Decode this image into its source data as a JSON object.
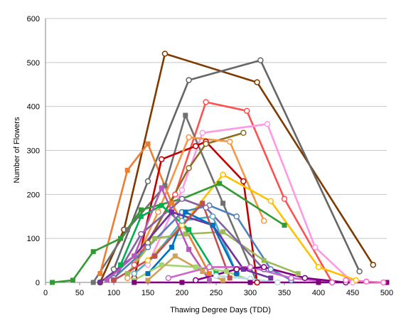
{
  "chart_data": {
    "type": "line",
    "title": "",
    "xlabel": "Thawing Degree Days (TDD)",
    "ylabel": "Number of Flowers",
    "xlim": [
      0,
      500
    ],
    "ylim": [
      0,
      600
    ],
    "xticks": [
      "0",
      "50",
      "100",
      "150",
      "200",
      "250",
      "300",
      "350",
      "400",
      "450",
      "500"
    ],
    "yticks": [
      "0",
      "100",
      "200",
      "300",
      "400",
      "500",
      "600"
    ],
    "grid": "horizontal",
    "legend": "none",
    "series": [
      {
        "color": "#7f3a00",
        "marker": "circle",
        "x": [
          80,
          115,
          175,
          310,
          480
        ],
        "y": [
          0,
          120,
          520,
          455,
          40
        ]
      },
      {
        "color": "#666666",
        "marker": "circle",
        "x": [
          100,
          150,
          210,
          315,
          460
        ],
        "y": [
          30,
          230,
          460,
          505,
          25
        ]
      },
      {
        "color": "#ff5050",
        "marker": "circle",
        "x": [
          130,
          190,
          235,
          295,
          350,
          420
        ],
        "y": [
          40,
          200,
          410,
          390,
          190,
          0
        ]
      },
      {
        "color": "#ff99e6",
        "marker": "circle",
        "x": [
          150,
          200,
          230,
          325,
          395,
          450
        ],
        "y": [
          40,
          210,
          340,
          360,
          80,
          0
        ]
      },
      {
        "color": "#707070",
        "marker": "square",
        "x": [
          70,
          120,
          175,
          205,
          260,
          310
        ],
        "y": [
          0,
          120,
          220,
          380,
          180,
          0
        ]
      },
      {
        "color": "#ed7d31",
        "marker": "square",
        "x": [
          80,
          120,
          150,
          185,
          240
        ],
        "y": [
          20,
          255,
          315,
          180,
          20
        ]
      },
      {
        "color": "#c00000",
        "marker": "circle",
        "x": [
          130,
          170,
          220,
          235,
          290,
          310
        ],
        "y": [
          10,
          280,
          310,
          320,
          230,
          0
        ]
      },
      {
        "color": "#8c6d1f",
        "marker": "circle",
        "x": [
          150,
          210,
          235,
          290
        ],
        "y": [
          90,
          260,
          315,
          340
        ]
      },
      {
        "color": "#f79646",
        "marker": "circle",
        "x": [
          120,
          165,
          210,
          270,
          320
        ],
        "y": [
          10,
          160,
          330,
          320,
          140
        ]
      },
      {
        "color": "#ffc000",
        "marker": "circle",
        "x": [
          150,
          200,
          260,
          330,
          400,
          455
        ],
        "y": [
          50,
          130,
          245,
          185,
          35,
          5
        ]
      },
      {
        "color": "#339933",
        "marker": "square",
        "x": [
          10,
          40,
          70,
          110,
          140,
          200,
          255,
          350
        ],
        "y": [
          0,
          5,
          70,
          100,
          165,
          190,
          225,
          130
        ]
      },
      {
        "color": "#4f81bd",
        "marker": "circle",
        "x": [
          100,
          150,
          200,
          240,
          280,
          330,
          360
        ],
        "y": [
          10,
          80,
          160,
          175,
          150,
          30,
          5
        ]
      },
      {
        "color": "#4bacc6",
        "marker": "circle",
        "x": [
          130,
          160,
          200,
          245,
          280
        ],
        "y": [
          20,
          60,
          140,
          150,
          20
        ]
      },
      {
        "color": "#9bbb59",
        "marker": "square",
        "x": [
          120,
          160,
          205,
          260,
          320,
          370
        ],
        "y": [
          20,
          100,
          110,
          115,
          50,
          20
        ]
      },
      {
        "color": "#7030a0",
        "marker": "square",
        "x": [
          80,
          130,
          185,
          245,
          290,
          330
        ],
        "y": [
          0,
          60,
          160,
          130,
          30,
          10
        ]
      },
      {
        "color": "#8064a2",
        "marker": "circle",
        "x": [
          100,
          140,
          200,
          235,
          320
        ],
        "y": [
          5,
          110,
          190,
          170,
          30
        ]
      },
      {
        "color": "#0070c0",
        "marker": "square",
        "x": [
          150,
          185,
          205,
          245,
          280
        ],
        "y": [
          20,
          80,
          160,
          130,
          20
        ]
      },
      {
        "color": "#00b050",
        "marker": "square",
        "x": [
          110,
          140,
          170,
          210,
          250
        ],
        "y": [
          40,
          150,
          175,
          120,
          20
        ]
      },
      {
        "color": "#b65ab8",
        "marker": "square",
        "x": [
          90,
          130,
          170,
          210,
          240
        ],
        "y": [
          5,
          60,
          215,
          75,
          5
        ]
      },
      {
        "color": "#c0504d",
        "marker": "square",
        "x": [
          100,
          160,
          230,
          270
        ],
        "y": [
          5,
          60,
          180,
          10
        ]
      },
      {
        "color": "#a5d36f",
        "marker": "square",
        "x": [
          130,
          170,
          220,
          265,
          300
        ],
        "y": [
          5,
          40,
          35,
          25,
          5
        ]
      },
      {
        "color": "#d2a05a",
        "marker": "square",
        "x": [
          150,
          190,
          230,
          260
        ],
        "y": [
          5,
          60,
          25,
          5
        ]
      },
      {
        "color": "#cc66cc",
        "marker": "circle",
        "x": [
          180,
          240,
          300,
          360,
          420
        ],
        "y": [
          10,
          35,
          35,
          10,
          0
        ]
      },
      {
        "color": "#7f007f",
        "marker": "circle",
        "x": [
          220,
          280,
          320,
          380,
          440
        ],
        "y": [
          5,
          30,
          35,
          10,
          0
        ]
      },
      {
        "color": "#b7dde8",
        "marker": "circle",
        "x": [
          250,
          300,
          340
        ],
        "y": [
          15,
          8,
          0
        ]
      },
      {
        "color": "#800080",
        "marker": "square",
        "x": [
          130,
          200,
          300,
          400,
          500
        ],
        "y": [
          0,
          0,
          0,
          0,
          0
        ]
      },
      {
        "color": "#ff66cc",
        "marker": "circle",
        "x": [
          440,
          470,
          495
        ],
        "y": [
          5,
          2,
          0
        ]
      }
    ]
  }
}
